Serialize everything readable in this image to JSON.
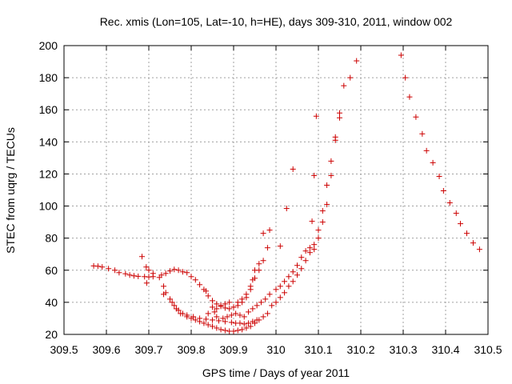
{
  "chart_data": {
    "type": "scatter",
    "title": "Rec. xmis (Lon=105, Lat=-10, h=HE), days 309-310, 2011, window 002",
    "xlabel": "GPS time / Days of year 2011",
    "ylabel": "STEC from uqrg / TECUs",
    "xlim": [
      309.5,
      310.5
    ],
    "ylim": [
      20,
      200
    ],
    "x_ticks": [
      "309.5",
      "309.6",
      "309.7",
      "309.8",
      "309.9",
      "310",
      "310.1",
      "310.2",
      "310.3",
      "310.4",
      "310.5"
    ],
    "y_ticks": [
      "20",
      "40",
      "60",
      "80",
      "100",
      "120",
      "140",
      "160",
      "180",
      "200"
    ],
    "grid": true,
    "marker": "+",
    "color": "#cc0000",
    "points": [
      [
        309.57,
        62.7
      ],
      [
        309.58,
        62.5
      ],
      [
        309.59,
        62.0
      ],
      [
        309.605,
        61.0
      ],
      [
        309.62,
        60.0
      ],
      [
        309.63,
        58.5
      ],
      [
        309.645,
        57.8
      ],
      [
        309.655,
        57.0
      ],
      [
        309.665,
        56.5
      ],
      [
        309.675,
        56.2
      ],
      [
        309.69,
        56.0
      ],
      [
        309.7,
        55.8
      ],
      [
        309.684,
        68.5
      ],
      [
        309.694,
        62.0
      ],
      [
        309.7,
        60.0
      ],
      [
        309.71,
        58.0
      ],
      [
        309.73,
        57.0
      ],
      [
        309.74,
        58.0
      ],
      [
        309.75,
        59.5
      ],
      [
        309.76,
        60.5
      ],
      [
        309.77,
        60.0
      ],
      [
        309.78,
        59.0
      ],
      [
        309.79,
        58.5
      ],
      [
        309.8,
        56.0
      ],
      [
        309.81,
        54.0
      ],
      [
        309.82,
        51.0
      ],
      [
        309.83,
        48.0
      ],
      [
        309.835,
        47.0
      ],
      [
        309.84,
        44.0
      ],
      [
        309.85,
        41.0
      ],
      [
        309.86,
        39.0
      ],
      [
        309.87,
        37.5
      ],
      [
        309.88,
        36.5
      ],
      [
        309.89,
        36.0
      ],
      [
        309.9,
        37.0
      ],
      [
        309.91,
        38.0
      ],
      [
        309.92,
        40.0
      ],
      [
        309.93,
        43.0
      ],
      [
        309.94,
        48.0
      ],
      [
        309.945,
        54.0
      ],
      [
        309.95,
        60.0
      ],
      [
        309.96,
        64.0
      ],
      [
        309.97,
        66.0
      ],
      [
        309.98,
        74.0
      ],
      [
        309.985,
        85.0
      ],
      [
        309.97,
        83.0
      ],
      [
        309.695,
        52.0
      ],
      [
        309.71,
        56.0
      ],
      [
        309.725,
        55.5
      ],
      [
        309.735,
        50.0
      ],
      [
        309.74,
        46.0
      ],
      [
        309.75,
        42.0
      ],
      [
        309.76,
        38.0
      ],
      [
        309.77,
        35.0
      ],
      [
        309.78,
        33.0
      ],
      [
        309.79,
        31.0
      ],
      [
        309.8,
        30.0
      ],
      [
        309.81,
        29.0
      ],
      [
        309.82,
        28.0
      ],
      [
        309.83,
        27.0
      ],
      [
        309.84,
        26.0
      ],
      [
        309.85,
        25.0
      ],
      [
        309.86,
        24.0
      ],
      [
        309.87,
        23.0
      ],
      [
        309.88,
        22.5
      ],
      [
        309.89,
        22.0
      ],
      [
        309.9,
        22.0
      ],
      [
        309.91,
        22.5
      ],
      [
        309.92,
        23.0
      ],
      [
        309.93,
        24.0
      ],
      [
        309.94,
        25.0
      ],
      [
        309.95,
        27.0
      ],
      [
        309.96,
        29.0
      ],
      [
        309.97,
        31.0
      ],
      [
        309.98,
        33.0
      ],
      [
        309.735,
        45.0
      ],
      [
        309.755,
        40.0
      ],
      [
        309.765,
        36.0
      ],
      [
        309.775,
        33.0
      ],
      [
        309.79,
        32.0
      ],
      [
        309.805,
        31.0
      ],
      [
        309.82,
        30.0
      ],
      [
        309.835,
        29.5
      ],
      [
        309.85,
        29.0
      ],
      [
        309.865,
        28.5
      ],
      [
        309.88,
        28.0
      ],
      [
        309.895,
        27.5
      ],
      [
        309.905,
        27.0
      ],
      [
        309.915,
        27.0
      ],
      [
        309.925,
        26.5
      ],
      [
        309.935,
        27.0
      ],
      [
        309.945,
        28.0
      ],
      [
        309.955,
        29.0
      ],
      [
        309.84,
        33.0
      ],
      [
        309.855,
        34.0
      ],
      [
        309.86,
        31.0
      ],
      [
        309.875,
        30.0
      ],
      [
        309.885,
        31.0
      ],
      [
        309.895,
        32.0
      ],
      [
        309.905,
        33.0
      ],
      [
        309.915,
        32.0
      ],
      [
        309.925,
        31.0
      ],
      [
        309.935,
        34.0
      ],
      [
        309.945,
        36.0
      ],
      [
        309.955,
        38.0
      ],
      [
        309.965,
        40.0
      ],
      [
        309.975,
        42.0
      ],
      [
        309.985,
        45.0
      ],
      [
        309.85,
        37.0
      ],
      [
        309.86,
        36.0
      ],
      [
        309.87,
        38.0
      ],
      [
        309.88,
        39.0
      ],
      [
        309.89,
        40.0
      ],
      [
        309.9,
        37.0
      ],
      [
        309.91,
        40.0
      ],
      [
        309.92,
        42.0
      ],
      [
        309.93,
        45.0
      ],
      [
        309.94,
        50.0
      ],
      [
        309.95,
        55.0
      ],
      [
        309.96,
        60.0
      ],
      [
        309.99,
        38.0
      ],
      [
        310.0,
        40.0
      ],
      [
        310.01,
        43.0
      ],
      [
        310.02,
        46.0
      ],
      [
        310.03,
        50.0
      ],
      [
        310.04,
        53.0
      ],
      [
        310.05,
        57.0
      ],
      [
        310.06,
        61.0
      ],
      [
        310.07,
        66.0
      ],
      [
        310.08,
        71.0
      ],
      [
        310.09,
        76.0
      ],
      [
        310.1,
        85.0
      ],
      [
        310.11,
        97.0
      ],
      [
        310.12,
        113.0
      ],
      [
        310.13,
        128.0
      ],
      [
        310.14,
        143.0
      ],
      [
        310.15,
        158.0
      ],
      [
        310.16,
        175.0
      ],
      [
        310.175,
        180.0
      ],
      [
        310.19,
        190.5
      ],
      [
        310.0,
        48.0
      ],
      [
        310.01,
        50.0
      ],
      [
        310.02,
        53.0
      ],
      [
        310.03,
        56.0
      ],
      [
        310.04,
        59.0
      ],
      [
        310.05,
        63.0
      ],
      [
        310.06,
        68.0
      ],
      [
        310.07,
        72.0
      ],
      [
        310.08,
        74.0
      ],
      [
        310.09,
        73.0
      ],
      [
        310.1,
        80.0
      ],
      [
        310.11,
        90.0
      ],
      [
        310.12,
        101.0
      ],
      [
        310.13,
        119.0
      ],
      [
        310.14,
        141.0
      ],
      [
        310.15,
        155.0
      ],
      [
        310.01,
        75.0
      ],
      [
        310.025,
        98.5
      ],
      [
        310.04,
        123.0
      ],
      [
        310.085,
        90.5
      ],
      [
        310.09,
        119.0
      ],
      [
        310.095,
        156.0
      ],
      [
        310.295,
        194.0
      ],
      [
        310.305,
        180.0
      ],
      [
        310.315,
        168.0
      ],
      [
        310.33,
        155.5
      ],
      [
        310.345,
        145.0
      ],
      [
        310.355,
        134.5
      ],
      [
        310.37,
        127.0
      ],
      [
        310.385,
        118.5
      ],
      [
        310.395,
        109.5
      ],
      [
        310.41,
        102.0
      ],
      [
        310.425,
        95.5
      ],
      [
        310.435,
        89.0
      ],
      [
        310.45,
        83.0
      ],
      [
        310.465,
        77.0
      ],
      [
        310.48,
        73.0
      ]
    ]
  }
}
